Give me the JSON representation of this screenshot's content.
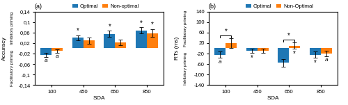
{
  "chart_data": [
    {
      "type": "bar",
      "title": "(a)",
      "x_label": "SOA",
      "y_label": "Accuracy",
      "y_label_upper": "Inhibitory priming",
      "y_label_lower": "Facilitatory priming",
      "categories": [
        "100",
        "450",
        "650",
        "850"
      ],
      "series": [
        {
          "name": "Optimal",
          "values": [
            -0.025,
            0.04,
            0.055,
            0.068
          ],
          "errors": [
            0.008,
            0.01,
            0.012,
            0.012
          ]
        },
        {
          "name": "Non-optimal",
          "values": [
            -0.01,
            0.03,
            0.022,
            0.058
          ],
          "errors": [
            0.006,
            0.012,
            0.01,
            0.015
          ]
        }
      ],
      "ylim": [
        -0.14,
        0.14
      ],
      "yticks": [
        {
          "value": -0.14,
          "label": "-0,14"
        },
        {
          "value": -0.1,
          "label": "-0,1"
        },
        {
          "value": -0.06,
          "label": "-0,06"
        },
        {
          "value": -0.02,
          "label": "-0,02"
        },
        {
          "value": 0.02,
          "label": "0,02"
        },
        {
          "value": 0.06,
          "label": "0,06"
        },
        {
          "value": 0.1,
          "label": "0,1"
        },
        {
          "value": 0.14,
          "label": "0,14"
        }
      ],
      "legend": "upper center",
      "annotations": [
        {
          "text": "a",
          "category": "100",
          "series": "Optimal",
          "side": "below"
        },
        {
          "text": "a",
          "category": "100",
          "series": "Non-optimal",
          "side": "below"
        },
        {
          "text": "*",
          "category": "450",
          "series": "Optimal",
          "side": "above"
        },
        {
          "text": "*",
          "category": "650",
          "series": "Optimal",
          "side": "above"
        },
        {
          "text": "*",
          "category": "850",
          "series": "Optimal",
          "side": "above"
        },
        {
          "text": "*",
          "category": "850",
          "series": "Non-optimal",
          "side": "above"
        }
      ]
    },
    {
      "type": "bar",
      "title": "(b)",
      "x_label": "SOA",
      "y_label": "RTs (ms)",
      "y_label_upper": "Facilitatory priming",
      "y_label_lower": "Inhibitory priming",
      "categories": [
        "100",
        "450",
        "650",
        "850"
      ],
      "series": [
        {
          "name": "Optimal",
          "values": [
            -25,
            -10,
            -55,
            -25
          ],
          "errors": [
            12,
            8,
            15,
            12
          ]
        },
        {
          "name": "Non-Optimal",
          "values": [
            20,
            -10,
            10,
            -20
          ],
          "errors": [
            18,
            8,
            12,
            10
          ]
        }
      ],
      "ylim": [
        -140,
        140
      ],
      "yticks": [
        -140,
        -100,
        -60,
        -20,
        20,
        60,
        100,
        140
      ],
      "legend": "upper center",
      "annotations": [
        {
          "text": "*",
          "category": "100",
          "series": [
            "Optimal",
            "Non-Optimal"
          ],
          "side": "above"
        },
        {
          "text": "*",
          "category": "650",
          "series": [
            "Optimal",
            "Non-Optimal"
          ],
          "side": "above"
        },
        {
          "text": "a",
          "category": "100",
          "series": "Optimal",
          "side": "below"
        },
        {
          "text": "*",
          "category": "450",
          "series": "Optimal",
          "side": "below"
        },
        {
          "text": "*",
          "category": "650",
          "series": "Non-Optimal",
          "side": "below"
        },
        {
          "text": "*",
          "category": "850",
          "series": "Optimal",
          "side": "below"
        },
        {
          "text": "a",
          "category": "850",
          "series": "Non-Optimal",
          "side": "below"
        }
      ]
    }
  ]
}
